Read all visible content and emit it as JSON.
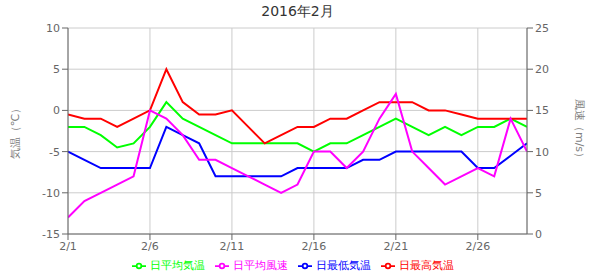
{
  "chart_data": {
    "type": "line",
    "title": "2016年2月",
    "x": [
      1,
      2,
      3,
      4,
      5,
      6,
      7,
      8,
      9,
      10,
      11,
      12,
      13,
      14,
      15,
      16,
      17,
      18,
      19,
      20,
      21,
      22,
      23,
      24,
      25,
      26,
      27,
      28,
      29
    ],
    "xlim": [
      1,
      29
    ],
    "xticks": [
      {
        "value": 1,
        "label": "2/1"
      },
      {
        "value": 6,
        "label": "2/6"
      },
      {
        "value": 11,
        "label": "2/11"
      },
      {
        "value": 16,
        "label": "2/16"
      },
      {
        "value": 21,
        "label": "2/21"
      },
      {
        "value": 26,
        "label": "2/26"
      }
    ],
    "ylabel": "気温（℃）",
    "y2label": "風速（m/s）",
    "ylim": [
      -15,
      10
    ],
    "yticks": [
      -15,
      -10,
      -5,
      0,
      5,
      10
    ],
    "y2lim": [
      0,
      25
    ],
    "y2ticks": [
      0,
      5,
      10,
      15,
      20,
      25
    ],
    "grid": true,
    "legend": "bottom",
    "series": [
      {
        "name": "日平均気温",
        "color": "#00ff00",
        "values": [
          -2,
          -2,
          -3,
          -4.5,
          -4,
          -2,
          1,
          -1,
          -2,
          -3,
          -4,
          -4,
          -4,
          -4,
          -4,
          -5,
          -4,
          -4,
          -3,
          -2,
          -1,
          -2,
          -3,
          -2,
          -3,
          -2,
          -2,
          -1,
          -2
        ]
      },
      {
        "name": "日最高気温",
        "color": "#ff0000",
        "values": [
          -0.5,
          -1,
          -1,
          -2,
          -1,
          0,
          5,
          1,
          -0.5,
          -0.5,
          0,
          -2,
          -4,
          -3,
          -2,
          -2,
          -1,
          -1,
          0,
          1,
          1,
          1,
          0,
          0,
          -0.5,
          -1,
          -1,
          -1,
          -1
        ]
      },
      {
        "name": "日最低気温",
        "color": "#0000ff",
        "values": [
          -5,
          -6,
          -7,
          -7,
          -7,
          -7,
          -2,
          -3,
          -4,
          -8,
          -8,
          -8,
          -8,
          -8,
          -7,
          -7,
          -7,
          -7,
          -6,
          -6,
          -5,
          -5,
          -5,
          -5,
          -5,
          -7,
          -7,
          -5.5,
          -4
        ]
      },
      {
        "name": "日平均風速",
        "color": "#ff00ff",
        "axis": "y2",
        "values": [
          2,
          4,
          5,
          6,
          7,
          15,
          14,
          12,
          9,
          9,
          8,
          7,
          6,
          5,
          6,
          10,
          10,
          8,
          10,
          14,
          17,
          10,
          8,
          6,
          7,
          8,
          7,
          14,
          10
        ]
      }
    ]
  }
}
